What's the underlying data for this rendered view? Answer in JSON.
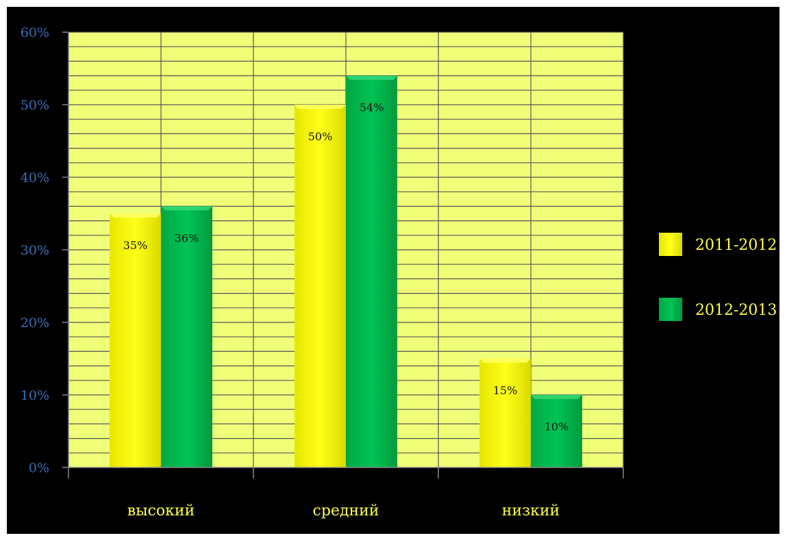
{
  "chart_data": {
    "type": "bar",
    "categories": [
      "высокий",
      "средний",
      "низкий"
    ],
    "series": [
      {
        "name": "2011-2012",
        "values": [
          35,
          50,
          15
        ],
        "labels": [
          "35%",
          "50%",
          "15%"
        ],
        "color": "#ffff00"
      },
      {
        "name": "2012-2013",
        "values": [
          36,
          54,
          10
        ],
        "labels": [
          "36%",
          "54%",
          "10%"
        ],
        "color": "#00c050"
      }
    ],
    "yticks": [
      "0%",
      "10%",
      "20%",
      "30%",
      "40%",
      "50%",
      "60%"
    ],
    "ylim": [
      0,
      60
    ],
    "grid": true,
    "legend": "right",
    "colors": {
      "background": "#000000",
      "plot_area": "#f0ff78",
      "grid": "#555555",
      "ytick": "#3a6fb5",
      "xtick": "#ffff4d"
    }
  }
}
